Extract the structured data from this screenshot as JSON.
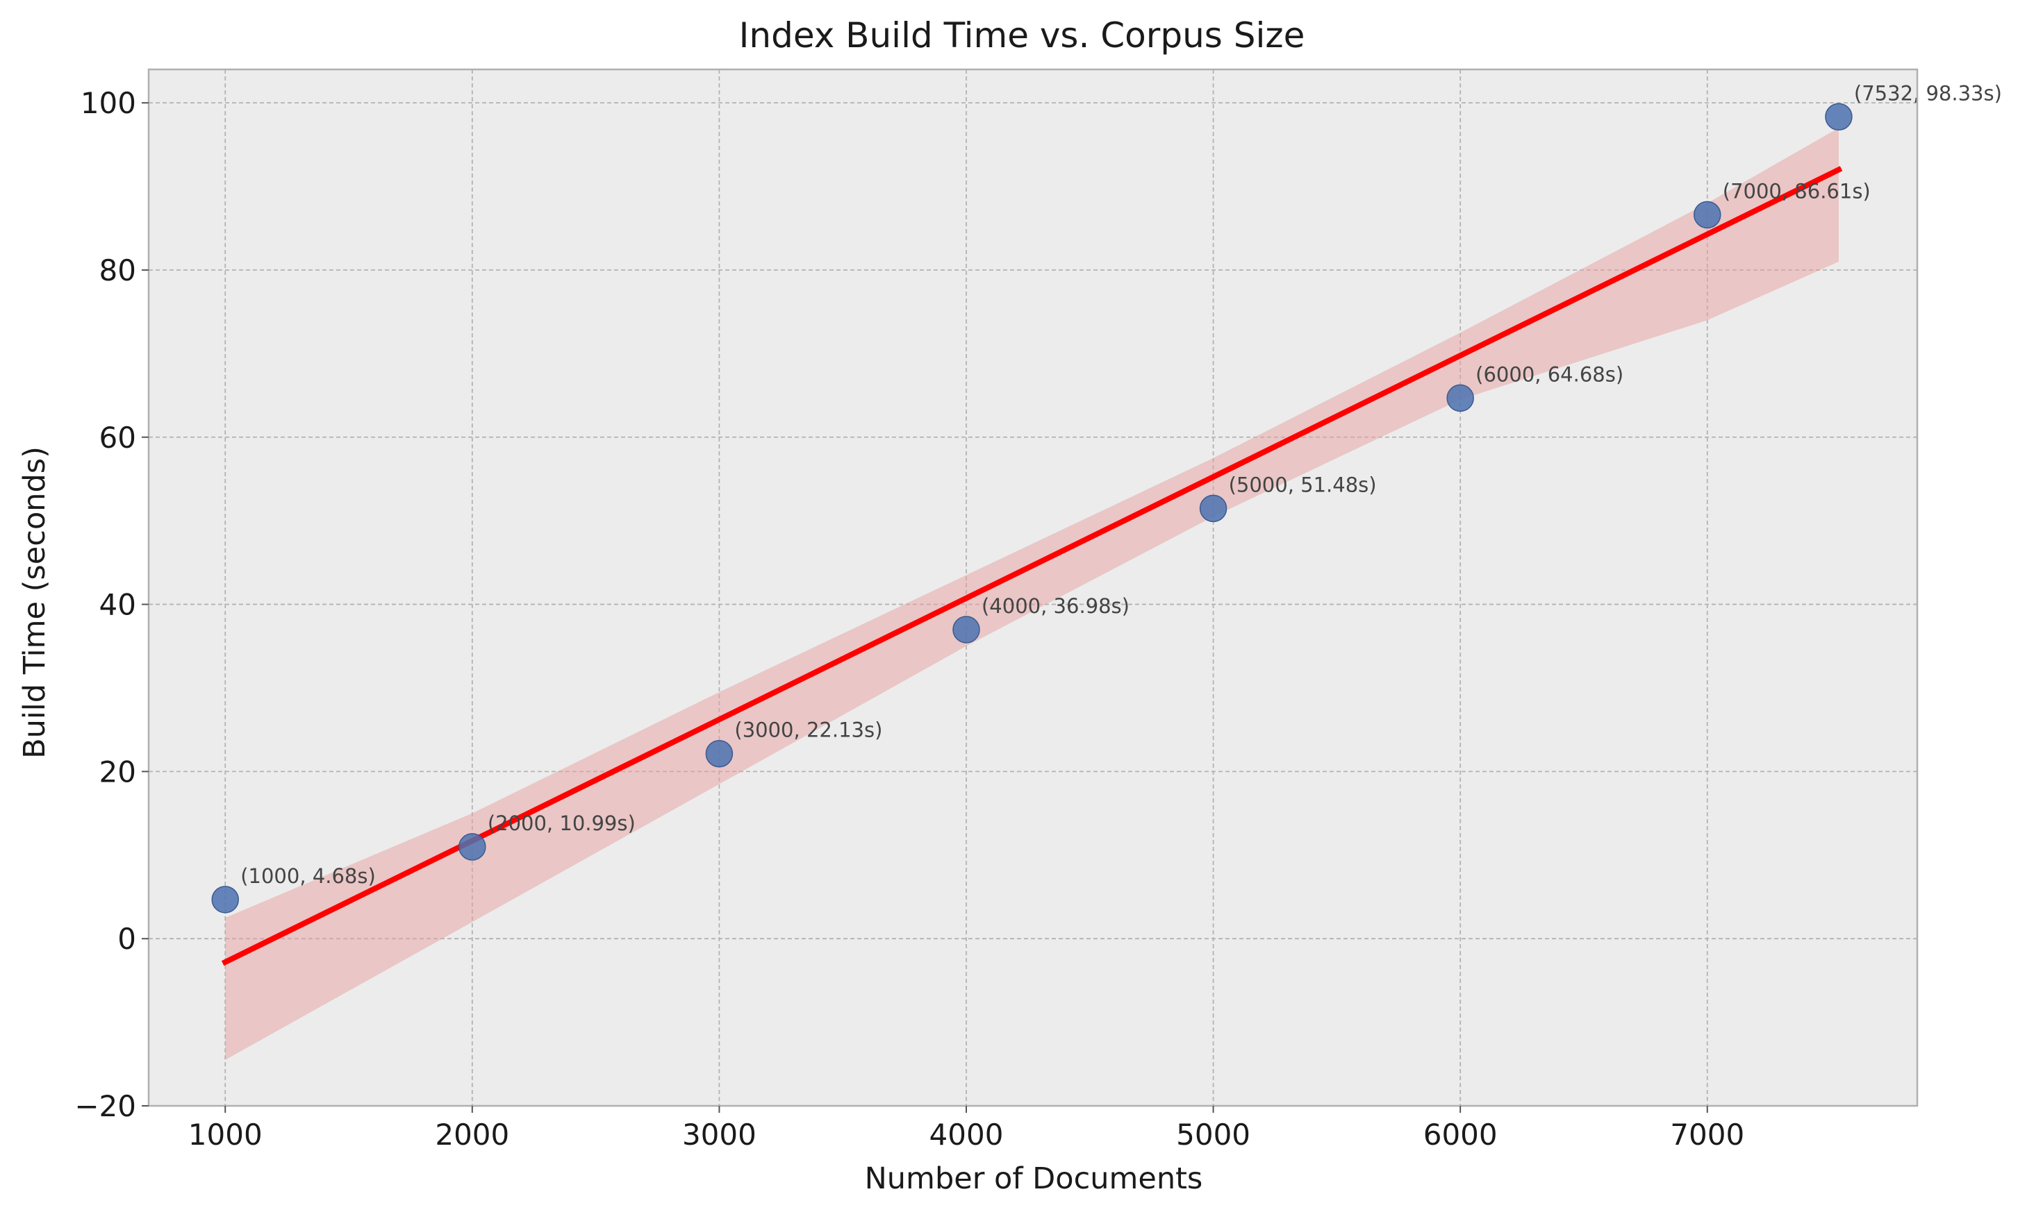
{
  "chart_data": {
    "type": "scatter",
    "title": "Index Build Time vs. Corpus Size",
    "xlabel": "Number of Documents",
    "ylabel": "Build Time (seconds)",
    "xlim": [
      690,
      7850
    ],
    "ylim": [
      -20,
      104
    ],
    "x_ticks": [
      1000,
      2000,
      3000,
      4000,
      5000,
      6000,
      7000
    ],
    "x_tick_labels": [
      "1000",
      "2000",
      "3000",
      "4000",
      "5000",
      "6000",
      "7000"
    ],
    "y_ticks": [
      -20,
      0,
      20,
      40,
      60,
      80,
      100
    ],
    "y_tick_labels": [
      "−20",
      "0",
      "20",
      "40",
      "60",
      "80",
      "100"
    ],
    "grid": true,
    "series": [
      {
        "type": "scatter",
        "color": "#4c72b0",
        "points": [
          {
            "x": 1000,
            "y": 4.68,
            "label": "(1000, 4.68s)"
          },
          {
            "x": 2000,
            "y": 10.99,
            "label": "(2000, 10.99s)"
          },
          {
            "x": 3000,
            "y": 22.13,
            "label": "(3000, 22.13s)"
          },
          {
            "x": 4000,
            "y": 36.98,
            "label": "(4000, 36.98s)"
          },
          {
            "x": 5000,
            "y": 51.48,
            "label": "(5000, 51.48s)"
          },
          {
            "x": 6000,
            "y": 64.68,
            "label": "(6000, 64.68s)"
          },
          {
            "x": 7000,
            "y": 86.61,
            "label": "(7000, 86.61s)"
          },
          {
            "x": 7532,
            "y": 98.33,
            "label": "(7532, 98.33s)"
          }
        ]
      },
      {
        "type": "line",
        "color": "#ff0000",
        "x": [
          1000,
          7532
        ],
        "y": [
          -2.8,
          92.0
        ]
      },
      {
        "type": "area",
        "color": "#e8a0a0",
        "x": [
          1000,
          2000,
          3000,
          4000,
          5000,
          6000,
          7000,
          7532
        ],
        "lower": [
          -14.5,
          2.0,
          18.5,
          35.0,
          50.5,
          64.5,
          74.0,
          81.0
        ],
        "upper": [
          2.5,
          15.0,
          29.5,
          43.5,
          57.5,
          72.5,
          88.0,
          97.0
        ]
      }
    ]
  }
}
